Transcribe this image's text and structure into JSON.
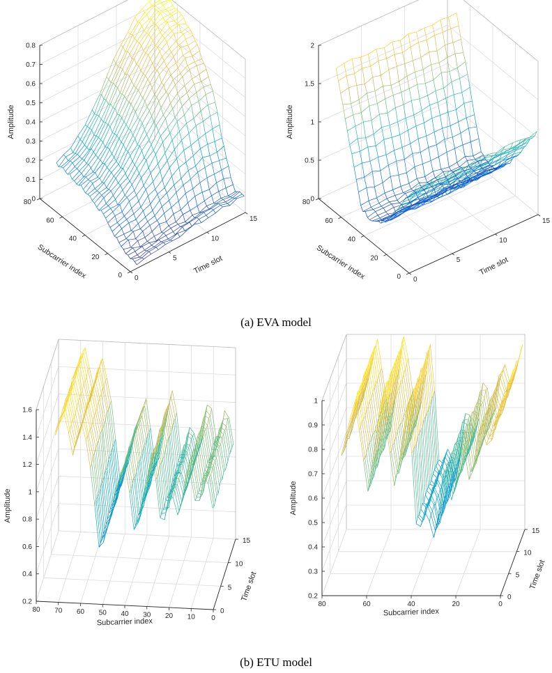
{
  "captions": [
    "(a) EVA model",
    "(b) ETU model"
  ],
  "chart_data": [
    {
      "type": "surface",
      "panel": "EVA-1",
      "xlabel": "Time slot",
      "ylabel": "Subcarrier index",
      "zlabel": "Amplitude",
      "xlim": [
        0,
        15
      ],
      "ylim": [
        0,
        80
      ],
      "zlim": [
        0,
        0.8
      ],
      "x_ticks": [
        0,
        5,
        10,
        15
      ],
      "y_ticks": [
        0,
        20,
        40,
        60,
        80
      ],
      "z_ticks": [
        0,
        0.1,
        0.2,
        0.3,
        0.4,
        0.5,
        0.6,
        0.7,
        0.8
      ],
      "x_tick_labels": [
        "0",
        "5",
        "10",
        "15"
      ],
      "y_tick_labels": [
        "0",
        "20",
        "40",
        "60",
        "80"
      ],
      "z_tick_labels": [
        "0",
        "0.1",
        "0.2",
        "0.3",
        "0.4",
        "0.5",
        "0.6",
        "0.7",
        "0.8"
      ],
      "colormap": "parula",
      "grid": true,
      "subcarrier_profile": {
        "subcarrier": [
          1,
          10,
          20,
          28,
          36,
          44,
          52,
          60,
          68,
          72
        ],
        "amplitude": [
          0.08,
          0.07,
          0.28,
          0.48,
          0.6,
          0.68,
          0.74,
          0.77,
          0.79,
          0.8
        ]
      },
      "time_slot_profile": {
        "time_slot": [
          1,
          3,
          5,
          7,
          9,
          11,
          13,
          15
        ],
        "factor": [
          0.25,
          0.3,
          0.42,
          0.6,
          0.78,
          0.92,
          1.0,
          1.0
        ]
      }
    },
    {
      "type": "surface",
      "panel": "EVA-2",
      "xlabel": "Time slot",
      "ylabel": "Subcarrier index",
      "zlabel": "Amplitude",
      "xlim": [
        0,
        15
      ],
      "ylim": [
        0,
        80
      ],
      "zlim": [
        0,
        2
      ],
      "x_ticks": [
        0,
        5,
        10,
        15
      ],
      "y_ticks": [
        0,
        20,
        40,
        60,
        80
      ],
      "z_ticks": [
        0,
        0.5,
        1,
        1.5,
        2
      ],
      "x_tick_labels": [
        "0",
        "5",
        "10",
        "15"
      ],
      "y_tick_labels": [
        "0",
        "20",
        "40",
        "60",
        "80"
      ],
      "z_tick_labels": [
        "0",
        "0.5",
        "1",
        "1.5",
        "2"
      ],
      "colormap": "parula",
      "grid": true,
      "subcarrier_profile": {
        "subcarrier": [
          1,
          10,
          20,
          30,
          40,
          50,
          60,
          72
        ],
        "amplitude": [
          1.05,
          0.8,
          0.5,
          0.25,
          0.12,
          0.2,
          0.9,
          1.75
        ]
      },
      "time_slot_profile": {
        "time_slot": [
          1,
          5,
          10,
          15
        ],
        "factor": [
          1.0,
          1.0,
          1.0,
          1.0
        ]
      }
    },
    {
      "type": "surface",
      "panel": "ETU-1",
      "xlabel": "Subcarrier index",
      "ylabel": "Time slot",
      "zlabel": "Amplitude",
      "xlim": [
        0,
        80
      ],
      "ylim": [
        0,
        15
      ],
      "zlim": [
        0.2,
        1.6
      ],
      "x_ticks": [
        0,
        10,
        20,
        30,
        40,
        50,
        60,
        70,
        80
      ],
      "y_ticks": [
        0,
        5,
        10,
        15
      ],
      "z_ticks": [
        0.2,
        0.4,
        0.6,
        0.8,
        1,
        1.2,
        1.4,
        1.6
      ],
      "x_tick_labels": [
        "0",
        "10",
        "20",
        "30",
        "40",
        "50",
        "60",
        "70",
        "80"
      ],
      "y_tick_labels": [
        "0",
        "5",
        "10",
        "15"
      ],
      "z_tick_labels": [
        "0.2",
        "0.4",
        "0.6",
        "0.8",
        "1",
        "1.2",
        "1.4",
        "1.6"
      ],
      "colormap": "parula",
      "grid": true,
      "subcarrier_profile": {
        "subcarrier": [
          72,
          68,
          64,
          60,
          56,
          52,
          48,
          44,
          40,
          36,
          32,
          28,
          24,
          20,
          16,
          12,
          8,
          4,
          1
        ],
        "amplitude": [
          1.4,
          1.55,
          1.25,
          1.5,
          1.15,
          0.55,
          0.75,
          1.05,
          1.2,
          0.65,
          1.0,
          1.3,
          0.7,
          1.05,
          0.8,
          1.25,
          0.85,
          1.2,
          0.9
        ]
      },
      "time_slot_profile": {
        "time_slot": [
          1,
          5,
          10,
          15
        ],
        "factor": [
          1.0,
          1.0,
          1.0,
          1.0
        ]
      }
    },
    {
      "type": "surface",
      "panel": "ETU-2",
      "xlabel": "Subcarrier index",
      "ylabel": "Time slot",
      "zlabel": "Amplitude",
      "xlim": [
        0,
        80
      ],
      "ylim": [
        0,
        15
      ],
      "zlim": [
        0.2,
        1
      ],
      "x_ticks": [
        0,
        20,
        40,
        60,
        80
      ],
      "y_ticks": [
        0,
        5,
        10,
        15
      ],
      "z_ticks": [
        0.2,
        0.3,
        0.4,
        0.5,
        0.6,
        0.7,
        0.8,
        0.9,
        1
      ],
      "x_tick_labels": [
        "0",
        "20",
        "40",
        "60",
        "80"
      ],
      "y_tick_labels": [
        "0",
        "5",
        "10",
        "15"
      ],
      "z_tick_labels": [
        "0.2",
        "0.3",
        "0.4",
        "0.5",
        "0.6",
        "0.7",
        "0.8",
        "0.9",
        "1"
      ],
      "colormap": "parula",
      "grid": true,
      "subcarrier_profile": {
        "subcarrier": [
          72,
          66,
          60,
          54,
          48,
          42,
          38,
          34,
          30,
          26,
          22,
          18,
          14,
          10,
          6,
          1
        ],
        "amplitude": [
          0.75,
          0.98,
          0.6,
          1.0,
          0.62,
          0.98,
          0.42,
          0.55,
          0.4,
          0.72,
          0.55,
          0.85,
          0.62,
          0.9,
          0.78,
          0.95
        ]
      },
      "time_slot_profile": {
        "time_slot": [
          1,
          5,
          10,
          15
        ],
        "factor": [
          1.0,
          1.0,
          1.0,
          1.0
        ]
      }
    }
  ]
}
